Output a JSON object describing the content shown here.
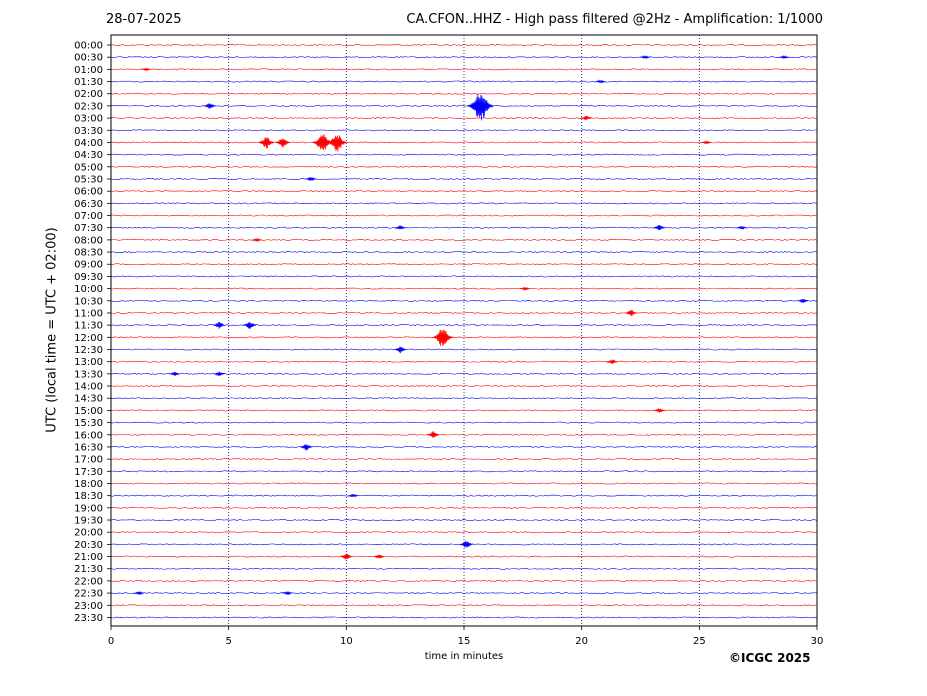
{
  "header": {
    "date": "28-07-2025",
    "title": "CA.CFON..HHZ - High pass filtered @2Hz - Amplification: 1/1000"
  },
  "footer": {
    "copyright": "©ICGC 2025"
  },
  "colors": {
    "red": "#ff0000",
    "blue": "#0000ff",
    "grid": "#000080"
  },
  "chart_data": {
    "type": "line",
    "title": "CA.CFON..HHZ - High pass filtered @2Hz - Amplification: 1/1000",
    "xlabel": "time in minutes",
    "ylabel": "UTC (local time = UTC + 02:00)",
    "xlim": [
      0,
      30
    ],
    "x_ticks": [
      0,
      5,
      10,
      15,
      20,
      25,
      30
    ],
    "vertical_grid_minutes": [
      5,
      10,
      15,
      20,
      25
    ],
    "trace_labels": [
      "00:00",
      "00:30",
      "01:00",
      "01:30",
      "02:00",
      "02:30",
      "03:00",
      "03:30",
      "04:00",
      "04:30",
      "05:00",
      "05:30",
      "06:00",
      "06:30",
      "07:00",
      "07:30",
      "08:00",
      "08:30",
      "09:00",
      "09:30",
      "10:00",
      "10:30",
      "11:00",
      "11:30",
      "12:00",
      "12:30",
      "13:00",
      "13:30",
      "14:00",
      "14:30",
      "15:00",
      "15:30",
      "16:00",
      "16:30",
      "17:00",
      "17:30",
      "18:00",
      "18:30",
      "19:00",
      "19:30",
      "20:00",
      "20:30",
      "21:00",
      "21:30",
      "22:00",
      "22:30",
      "23:00",
      "23:30"
    ],
    "trace_colors": [
      "red",
      "blue"
    ],
    "events": [
      {
        "trace": "00:30",
        "minute": 22.7,
        "amplitude": 0.15
      },
      {
        "trace": "00:30",
        "minute": 28.6,
        "amplitude": 0.15
      },
      {
        "trace": "01:00",
        "minute": 1.5,
        "amplitude": 0.12
      },
      {
        "trace": "01:30",
        "minute": 20.8,
        "amplitude": 0.15
      },
      {
        "trace": "02:30",
        "minute": 4.2,
        "amplitude": 0.3
      },
      {
        "trace": "02:30",
        "minute": 15.7,
        "amplitude": 1.3
      },
      {
        "trace": "03:00",
        "minute": 20.2,
        "amplitude": 0.2
      },
      {
        "trace": "04:00",
        "minute": 6.6,
        "amplitude": 0.55
      },
      {
        "trace": "04:00",
        "minute": 7.3,
        "amplitude": 0.5
      },
      {
        "trace": "04:00",
        "minute": 9.0,
        "amplitude": 0.9
      },
      {
        "trace": "04:00",
        "minute": 9.6,
        "amplitude": 0.85
      },
      {
        "trace": "04:00",
        "minute": 25.3,
        "amplitude": 0.15
      },
      {
        "trace": "05:30",
        "minute": 8.5,
        "amplitude": 0.2
      },
      {
        "trace": "07:30",
        "minute": 12.3,
        "amplitude": 0.2
      },
      {
        "trace": "07:30",
        "minute": 23.3,
        "amplitude": 0.25
      },
      {
        "trace": "07:30",
        "minute": 26.8,
        "amplitude": 0.15
      },
      {
        "trace": "08:00",
        "minute": 6.2,
        "amplitude": 0.15
      },
      {
        "trace": "10:00",
        "minute": 17.6,
        "amplitude": 0.15
      },
      {
        "trace": "10:30",
        "minute": 29.4,
        "amplitude": 0.2
      },
      {
        "trace": "11:00",
        "minute": 22.1,
        "amplitude": 0.3
      },
      {
        "trace": "11:30",
        "minute": 4.6,
        "amplitude": 0.3
      },
      {
        "trace": "11:30",
        "minute": 5.9,
        "amplitude": 0.35
      },
      {
        "trace": "12:00",
        "minute": 14.1,
        "amplitude": 0.9
      },
      {
        "trace": "12:30",
        "minute": 12.3,
        "amplitude": 0.3
      },
      {
        "trace": "13:00",
        "minute": 21.3,
        "amplitude": 0.2
      },
      {
        "trace": "13:30",
        "minute": 2.7,
        "amplitude": 0.2
      },
      {
        "trace": "13:30",
        "minute": 4.6,
        "amplitude": 0.2
      },
      {
        "trace": "15:00",
        "minute": 23.3,
        "amplitude": 0.2
      },
      {
        "trace": "16:00",
        "minute": 13.7,
        "amplitude": 0.3
      },
      {
        "trace": "16:30",
        "minute": 8.3,
        "amplitude": 0.3
      },
      {
        "trace": "18:30",
        "minute": 10.3,
        "amplitude": 0.15
      },
      {
        "trace": "20:30",
        "minute": 15.1,
        "amplitude": 0.35
      },
      {
        "trace": "21:00",
        "minute": 10.0,
        "amplitude": 0.3
      },
      {
        "trace": "21:00",
        "minute": 11.4,
        "amplitude": 0.2
      },
      {
        "trace": "22:30",
        "minute": 1.2,
        "amplitude": 0.15
      },
      {
        "trace": "22:30",
        "minute": 7.5,
        "amplitude": 0.15
      }
    ]
  }
}
